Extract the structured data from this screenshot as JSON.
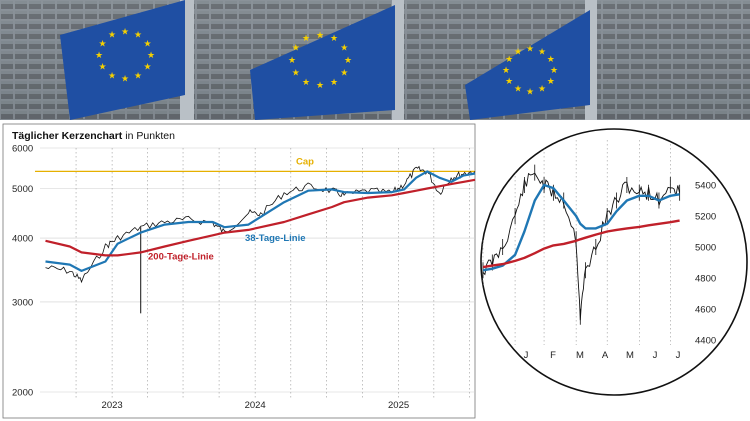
{
  "photo": {
    "description_visible": false,
    "flag_color": "#1f4fa3",
    "star_color": "#f5d000"
  },
  "chart_data": [
    {
      "type": "line",
      "title": "Täglicher Kerzenchart",
      "subtitle": "in Punkten",
      "scale": "log",
      "ylim": [
        2000,
        6000
      ],
      "yticks": [
        "6000",
        "5000",
        "4000",
        "3000",
        "2000"
      ],
      "ytick_values": [
        6000,
        5000,
        4000,
        3000,
        2000
      ],
      "xtick_labels": [
        "2023",
        "2024",
        "2025"
      ],
      "xlim": [
        "2022-07-01",
        "2025-07-15"
      ],
      "x": [
        "2022-07",
        "2022-09",
        "2022-10",
        "2022-12",
        "2023-01",
        "2023-03",
        "2023-05",
        "2023-07",
        "2023-09",
        "2023-10",
        "2023-12",
        "2024-01",
        "2024-03",
        "2024-05",
        "2024-07",
        "2024-08",
        "2024-10",
        "2024-12",
        "2025-01",
        "2025-02",
        "2025-03",
        "2025-04",
        "2025-05",
        "2025-06",
        "2025-07"
      ],
      "series": [
        {
          "name": "",
          "role": "price",
          "color": "#111111",
          "values": [
            3500,
            3450,
            3300,
            3850,
            4000,
            4200,
            4300,
            4350,
            4280,
            4100,
            4480,
            4450,
            4900,
            5050,
            4950,
            4850,
            4950,
            4900,
            5100,
            5450,
            5400,
            4900,
            5250,
            5350,
            5400
          ]
        },
        {
          "name": "38-Tage-Linie",
          "role": "ma38",
          "color": "#1f77b4",
          "values": [
            3600,
            3550,
            3450,
            3600,
            3900,
            4100,
            4250,
            4300,
            4300,
            4200,
            4250,
            4400,
            4700,
            4950,
            4980,
            4920,
            4900,
            4920,
            4980,
            5250,
            5400,
            5250,
            5150,
            5300,
            5350
          ]
        },
        {
          "name": "200-Tage-Linie",
          "role": "ma200",
          "color": "#c0202a",
          "values": [
            3950,
            3850,
            3750,
            3700,
            3700,
            3750,
            3850,
            3950,
            4050,
            4100,
            4150,
            4200,
            4300,
            4450,
            4600,
            4700,
            4800,
            4850,
            4900,
            4950,
            5000,
            5050,
            5100,
            5150,
            5200
          ]
        }
      ],
      "reference_lines": [
        {
          "label": "Cap",
          "value": 5400,
          "color": "#e6b000"
        }
      ],
      "annotations": {
        "low_spike_date": "2023-03",
        "low_spike_value": 2850
      },
      "grid": "vertical-dotted"
    },
    {
      "type": "line",
      "title": "",
      "shape": "circle-zoom",
      "ylim": [
        4400,
        5500
      ],
      "yticks": [
        "5400",
        "5200",
        "5000",
        "4800",
        "4600",
        "4400"
      ],
      "ytick_values": [
        5400,
        5200,
        5000,
        4800,
        4600,
        4400
      ],
      "xtick_labels": [
        "J",
        "F",
        "M",
        "A",
        "M",
        "J",
        "J"
      ],
      "x": [
        "2025-01-01",
        "2025-01-10",
        "2025-01-20",
        "2025-02-01",
        "2025-02-10",
        "2025-02-20",
        "2025-03-01",
        "2025-03-10",
        "2025-03-20",
        "2025-04-01",
        "2025-04-05",
        "2025-04-10",
        "2025-04-20",
        "2025-05-01",
        "2025-05-10",
        "2025-05-20",
        "2025-06-01",
        "2025-06-10",
        "2025-06-20",
        "2025-07-01",
        "2025-07-10"
      ],
      "series": [
        {
          "name": "",
          "role": "price",
          "color": "#111111",
          "values": [
            4850,
            4900,
            5000,
            5200,
            5400,
            5480,
            5400,
            5350,
            5300,
            5050,
            4550,
            4850,
            5000,
            5200,
            5300,
            5400,
            5350,
            5350,
            5300,
            5400,
            5350
          ]
        },
        {
          "name": "",
          "role": "ma38",
          "color": "#1f77b4",
          "values": [
            4850,
            4860,
            4880,
            4950,
            5100,
            5300,
            5400,
            5380,
            5300,
            5200,
            5150,
            5120,
            5120,
            5150,
            5230,
            5300,
            5330,
            5330,
            5300,
            5330,
            5340
          ]
        },
        {
          "name": "",
          "role": "ma200",
          "color": "#c0202a",
          "values": [
            4870,
            4880,
            4890,
            4910,
            4930,
            4960,
            4990,
            5010,
            5020,
            5040,
            5050,
            5060,
            5080,
            5100,
            5110,
            5120,
            5130,
            5140,
            5150,
            5160,
            5170
          ]
        }
      ],
      "grid": "vertical-dotted"
    }
  ]
}
